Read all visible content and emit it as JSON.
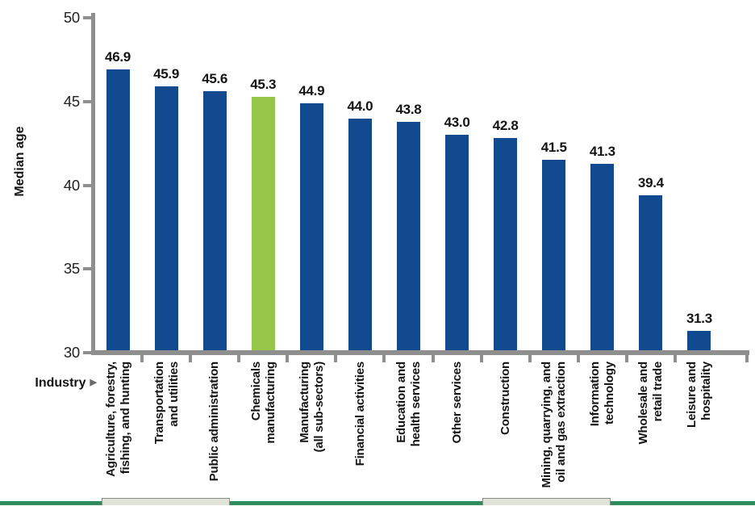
{
  "chart_data": {
    "type": "bar",
    "title": "",
    "ylabel": "Median age",
    "xlabel": "Industry",
    "xlabel_marker": "▶",
    "ylim": [
      30,
      50
    ],
    "yticks": [
      50,
      45,
      40,
      35,
      30
    ],
    "grid": false,
    "legend_position": null,
    "colors": {
      "bar": "#134A8F",
      "highlight": "#96C74A",
      "axis": "#8F8F8F",
      "text": "#141414",
      "footer_green": "#2E8B5C",
      "footer_light": "#DFE3DA",
      "footer_light_border": "#8A8F84"
    },
    "bars": [
      {
        "label": "Agriculture, forestry, fishing, and hunting",
        "label_lines": [
          "Agriculture, forestry,",
          "fishing, and hunting"
        ],
        "value": 46.9,
        "value_label": "46.9",
        "color": "bar"
      },
      {
        "label": "Transportation and utilities",
        "label_lines": [
          "Transportation",
          "and utilities"
        ],
        "value": 45.9,
        "value_label": "45.9",
        "color": "bar"
      },
      {
        "label": "Public administration",
        "label_lines": [
          "Public administration"
        ],
        "value": 45.6,
        "value_label": "45.6",
        "color": "bar"
      },
      {
        "label": "Chemicals manufacturing",
        "label_lines": [
          "Chemicals",
          "manufacturing"
        ],
        "value": 45.3,
        "value_label": "45.3",
        "color": "highlight"
      },
      {
        "label": "Manufacturing (all sub-sectors)",
        "label_lines": [
          "Manufacturing",
          "(all sub-sectors)"
        ],
        "value": 44.9,
        "value_label": "44.9",
        "color": "bar"
      },
      {
        "label": "Financial activities",
        "label_lines": [
          "Financial activities"
        ],
        "value": 44.0,
        "value_label": "44.0",
        "color": "bar"
      },
      {
        "label": "Education and health services",
        "label_lines": [
          "Education and",
          "health services"
        ],
        "value": 43.8,
        "value_label": "43.8",
        "color": "bar"
      },
      {
        "label": "Other services",
        "label_lines": [
          "Other services"
        ],
        "value": 43.0,
        "value_label": "43.0",
        "color": "bar"
      },
      {
        "label": "Construction",
        "label_lines": [
          "Construction"
        ],
        "value": 42.8,
        "value_label": "42.8",
        "color": "bar"
      },
      {
        "label": "Mining, quarrying, and oil and gas extraction",
        "label_lines": [
          "Mining, quarrying, and",
          "oil and gas extraction"
        ],
        "value": 41.5,
        "value_label": "41.5",
        "color": "bar"
      },
      {
        "label": "Information technology",
        "label_lines": [
          "Information",
          "technology"
        ],
        "value": 41.3,
        "value_label": "41.3",
        "color": "bar"
      },
      {
        "label": "Wholesale and retail trade",
        "label_lines": [
          "Wholesale and",
          "retail trade"
        ],
        "value": 39.4,
        "value_label": "39.4",
        "color": "bar"
      },
      {
        "label": "Leisure and hospitality",
        "label_lines": [
          "Leisure and",
          "hospitality"
        ],
        "value": 31.3,
        "value_label": "31.3",
        "color": "bar"
      }
    ],
    "highlight_index": 3
  }
}
